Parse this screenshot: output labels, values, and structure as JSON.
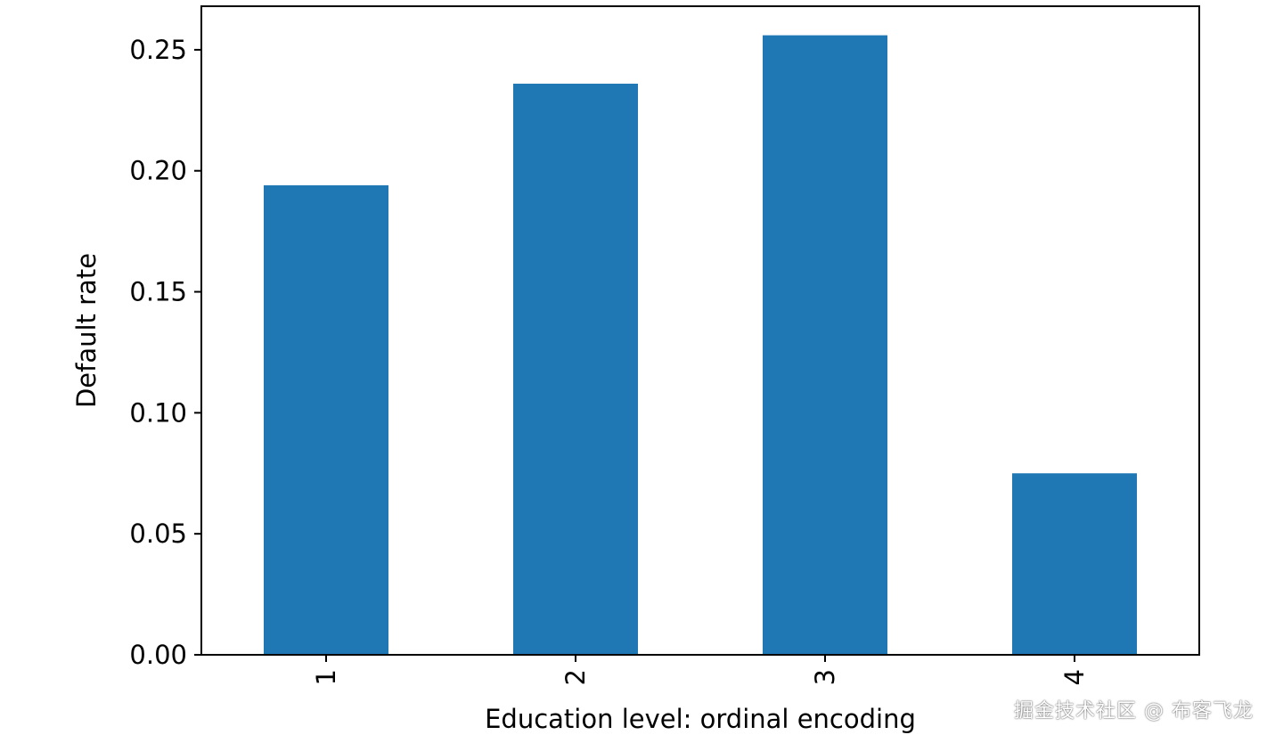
{
  "chart_data": {
    "type": "bar",
    "categories": [
      "1",
      "2",
      "3",
      "4"
    ],
    "values": [
      0.194,
      0.236,
      0.256,
      0.075
    ],
    "xlabel": "Education level: ordinal encoding",
    "ylabel": "Default rate",
    "ylim": [
      0,
      0.268
    ],
    "yticks": [
      "0.00",
      "0.05",
      "0.10",
      "0.15",
      "0.20",
      "0.25"
    ],
    "x_tick_rotation": "vertical",
    "grid": false,
    "legend": "none",
    "bar_color": "#1f77b4"
  },
  "watermark": "掘金技术社区 @ 布客飞龙"
}
